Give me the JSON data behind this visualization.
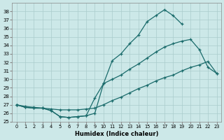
{
  "title": "",
  "xlabel": "Humidex (Indice chaleur)",
  "ylabel": "",
  "background_color": "#cce8e8",
  "grid_color": "#aacccc",
  "line_color": "#1a6b6b",
  "xlim": [
    -0.5,
    23.5
  ],
  "ylim": [
    25,
    39
  ],
  "xticks": [
    0,
    1,
    2,
    3,
    4,
    5,
    6,
    7,
    8,
    9,
    10,
    11,
    12,
    13,
    14,
    15,
    16,
    17,
    18,
    19,
    20,
    21,
    22,
    23
  ],
  "yticks": [
    25,
    26,
    27,
    28,
    29,
    30,
    31,
    32,
    33,
    34,
    35,
    36,
    37,
    38
  ],
  "curve1_y": [
    27.0,
    26.7,
    26.6,
    26.6,
    26.3,
    25.6,
    25.5,
    25.6,
    25.7,
    26.0,
    29.5,
    32.2,
    33.0,
    34.2,
    35.2,
    36.8,
    37.5,
    38.2,
    37.5,
    36.5,
    null,
    null,
    null,
    null
  ],
  "curve2_y": [
    27.0,
    26.8,
    26.7,
    26.6,
    26.5,
    26.4,
    26.4,
    26.4,
    26.5,
    26.6,
    27.0,
    27.5,
    27.9,
    28.4,
    28.9,
    29.3,
    29.8,
    30.2,
    30.5,
    31.0,
    31.4,
    31.7,
    32.1,
    30.7
  ],
  "curve3_y": [
    27.0,
    26.7,
    26.6,
    26.6,
    26.3,
    25.6,
    25.5,
    25.6,
    25.7,
    27.8,
    29.5,
    30.0,
    30.5,
    31.2,
    31.8,
    32.5,
    33.2,
    33.8,
    34.2,
    34.5,
    34.7,
    33.5,
    31.4,
    30.7
  ]
}
